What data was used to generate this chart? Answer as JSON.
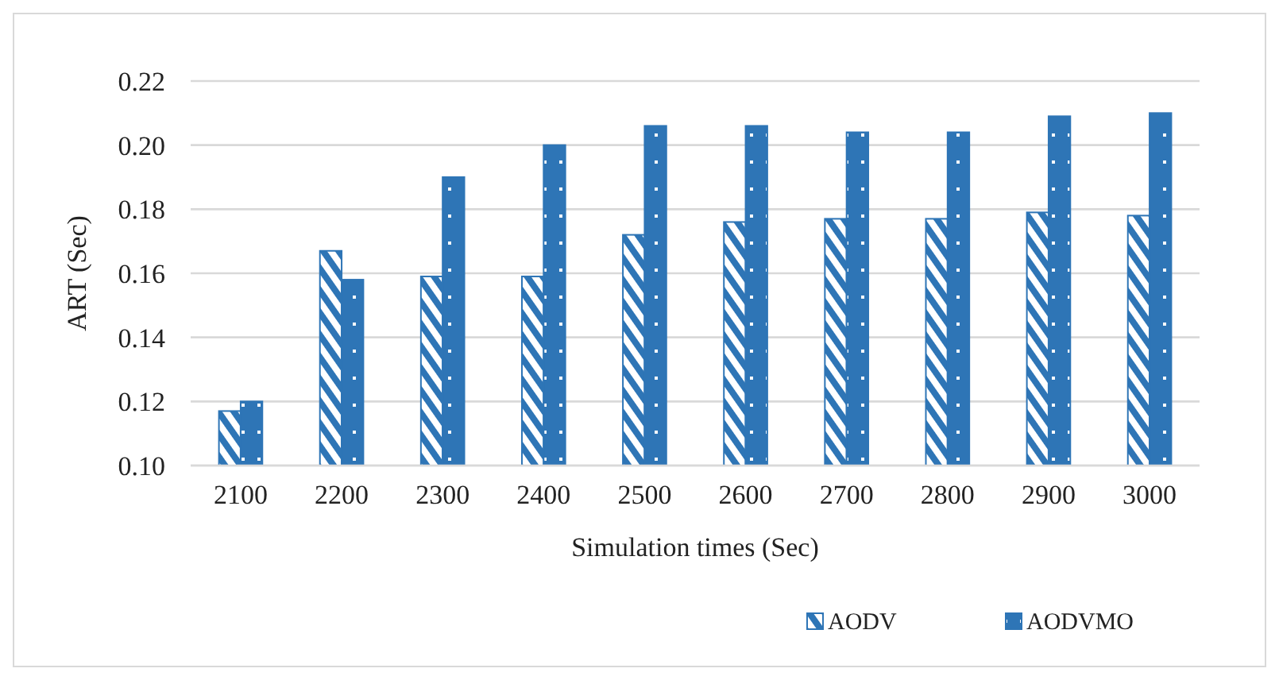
{
  "chart_data": {
    "type": "bar",
    "xlabel": "Simulation times (Sec)",
    "ylabel": "ART (Sec)",
    "categories": [
      "2100",
      "2200",
      "2300",
      "2400",
      "2500",
      "2600",
      "2700",
      "2800",
      "2900",
      "3000"
    ],
    "series": [
      {
        "name": "AODV",
        "color": "#2e75b6",
        "values": [
          0.117,
          0.167,
          0.159,
          0.159,
          0.172,
          0.176,
          0.177,
          0.177,
          0.179,
          0.178
        ]
      },
      {
        "name": "AODVMO",
        "color": "#2e75b6",
        "values": [
          0.12,
          0.158,
          0.19,
          0.2,
          0.206,
          0.206,
          0.204,
          0.204,
          0.209,
          0.21
        ]
      }
    ],
    "ylim": [
      0.1,
      0.22
    ],
    "yticks": [
      {
        "value": 0.1,
        "label": "0.10"
      },
      0.12,
      0.14,
      0.16,
      0.18,
      {
        "value": 0.2,
        "label": "0.20"
      },
      0.22
    ],
    "grid": "y",
    "legend": "bottom"
  }
}
